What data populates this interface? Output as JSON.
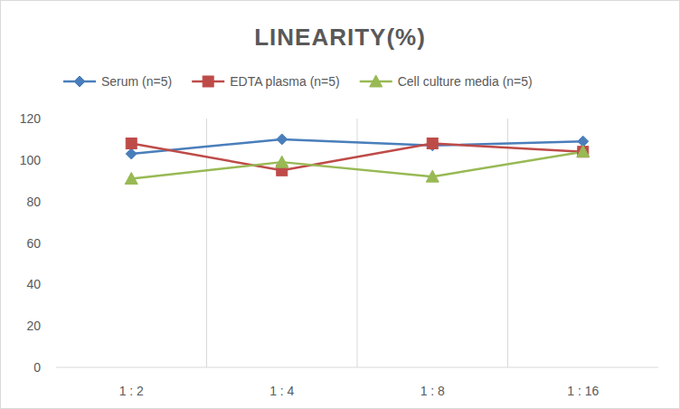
{
  "chart_data": {
    "type": "line",
    "title": "LINEARITY(%)",
    "categories": [
      "1 : 2",
      "1 : 4",
      "1 : 8",
      "1 : 16"
    ],
    "series": [
      {
        "name": "Serum (n=5)",
        "color": "#4a7ebb",
        "marker": "diamond",
        "values": [
          103,
          110,
          107,
          109
        ]
      },
      {
        "name": "EDTA plasma (n=5)",
        "color": "#be4b48",
        "marker": "square",
        "values": [
          108,
          95,
          108,
          104
        ]
      },
      {
        "name": "Cell culture media (n=5)",
        "color": "#98b954",
        "marker": "triangle",
        "values": [
          91,
          99,
          92,
          104
        ]
      }
    ],
    "ylim": [
      0,
      120
    ],
    "yticks": [
      0,
      20,
      40,
      60,
      80,
      100,
      120
    ],
    "grid": true,
    "legend": "top"
  }
}
